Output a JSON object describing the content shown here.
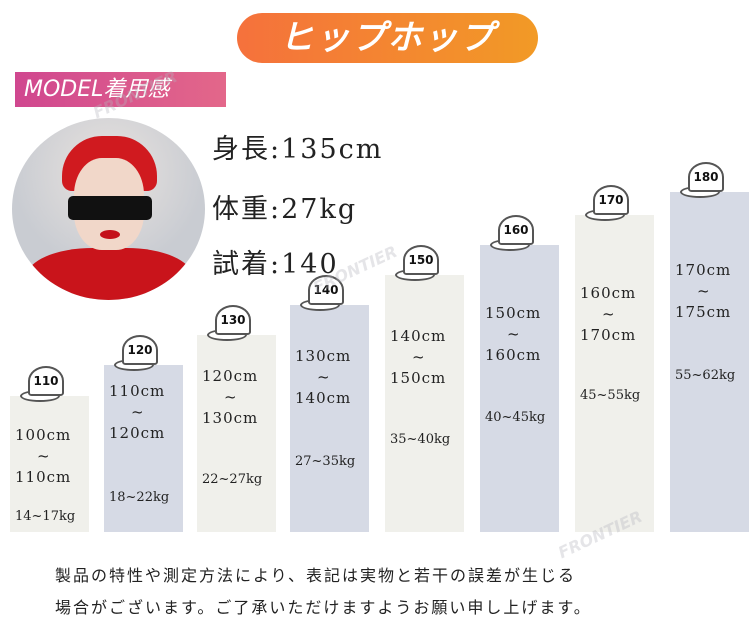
{
  "title": "ヒップホップ",
  "model_label": "MODEL着用感",
  "model_stats": [
    {
      "label": "身長",
      "value": "135cm"
    },
    {
      "label": "体重",
      "value": "27kg"
    },
    {
      "label": "試着",
      "value": "140"
    }
  ],
  "sizes": [
    {
      "size": "110",
      "height_from": "100cm",
      "height_to": "110cm",
      "tilde": "~",
      "weight": "14~17kg"
    },
    {
      "size": "120",
      "height_from": "110cm",
      "height_to": "120cm",
      "tilde": "~",
      "weight": "18~22kg"
    },
    {
      "size": "130",
      "height_from": "120cm",
      "height_to": "130cm",
      "tilde": "~",
      "weight": "22~27kg"
    },
    {
      "size": "140",
      "height_from": "130cm",
      "height_to": "140cm",
      "tilde": "~",
      "weight": "27~35kg"
    },
    {
      "size": "150",
      "height_from": "140cm",
      "height_to": "150cm",
      "tilde": "~",
      "weight": "35~40kg"
    },
    {
      "size": "160",
      "height_from": "150cm",
      "height_to": "160cm",
      "tilde": "~",
      "weight": "40~45kg"
    },
    {
      "size": "170",
      "height_from": "160cm",
      "height_to": "170cm",
      "tilde": "~",
      "weight": "45~55kg"
    },
    {
      "size": "180",
      "height_from": "170cm",
      "height_to": "175cm",
      "tilde": "~",
      "weight": "55~62kg"
    }
  ],
  "footer": [
    "製品の特性や測定方法により、表記は実物と若干の誤差が生じる",
    "場合がございます。ご了承いただけますようお願い申し上げます。"
  ],
  "watermark": "FRONTIER",
  "colors": {
    "title_start": "#f5713c",
    "title_end": "#f29a26",
    "model_start": "#d0478f",
    "model_end": "#e3678a",
    "bar_light": "#f0f0eb",
    "bar_blue": "#d6dae5"
  }
}
